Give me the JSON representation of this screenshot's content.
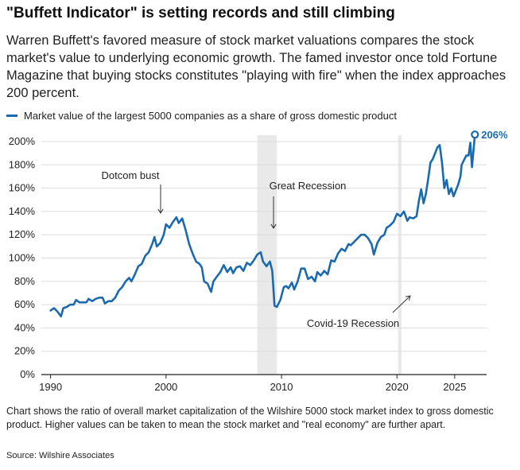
{
  "header": {
    "title": "\"Buffett Indicator\" is setting records and still climbing",
    "subtitle": "Warren Buffett's favored measure of stock market valuations compares the stock market's value to underlying economic growth. The famed investor once told Fortune Magazine that buying stocks constitutes \"playing with fire\" when the index approaches 200 percent."
  },
  "footer": {
    "caption": "Chart shows the ratio of overall market capitalization of the Wilshire 5000 stock market index to gross domestic product. Higher values can be taken to mean the stock market and \"real economy\" are further apart.",
    "source": "Source: Wilshire Associates"
  },
  "colors": {
    "line": "#1a6aad",
    "shade": "#e9e9e9",
    "grid": "#dddddd",
    "axis": "#222222",
    "arrow": "#333333"
  },
  "chart_data": {
    "type": "line",
    "title": "\"Buffett Indicator\" is setting records and still climbing",
    "xlabel": "",
    "ylabel": "",
    "xlim": [
      1989.2,
      2026.8
    ],
    "ylim": [
      0,
      200
    ],
    "grid": true,
    "legend": "top-left",
    "x_ticks": [
      1990,
      2000,
      2010,
      2020,
      2025
    ],
    "x_tick_labels": [
      "1990",
      "2000",
      "2010",
      "2020",
      "2025"
    ],
    "y_ticks": [
      0,
      20,
      40,
      60,
      80,
      100,
      120,
      140,
      160,
      180,
      200
    ],
    "y_tick_labels": [
      "0%",
      "20%",
      "40%",
      "60%",
      "80%",
      "100%",
      "120%",
      "140%",
      "160%",
      "180%",
      "200%"
    ],
    "series": [
      {
        "name": "Market value of the largest 5000 companies as a share of gross domestic product",
        "end_label": "206%",
        "points": [
          [
            1990.0,
            55
          ],
          [
            1990.3,
            57
          ],
          [
            1990.6,
            54
          ],
          [
            1990.9,
            50
          ],
          [
            1991.1,
            57
          ],
          [
            1991.4,
            58
          ],
          [
            1991.7,
            60
          ],
          [
            1992.0,
            60
          ],
          [
            1992.2,
            64
          ],
          [
            1992.5,
            62
          ],
          [
            1992.8,
            62
          ],
          [
            1993.1,
            62
          ],
          [
            1993.3,
            65
          ],
          [
            1993.6,
            63
          ],
          [
            1993.9,
            65
          ],
          [
            1994.2,
            66
          ],
          [
            1994.5,
            66
          ],
          [
            1994.7,
            61
          ],
          [
            1995.0,
            63
          ],
          [
            1995.3,
            63
          ],
          [
            1995.6,
            66
          ],
          [
            1995.9,
            72
          ],
          [
            1996.2,
            75
          ],
          [
            1996.5,
            80
          ],
          [
            1996.8,
            83
          ],
          [
            1997.0,
            80
          ],
          [
            1997.3,
            86
          ],
          [
            1997.6,
            93
          ],
          [
            1997.9,
            95
          ],
          [
            1998.2,
            102
          ],
          [
            1998.5,
            105
          ],
          [
            1998.8,
            112
          ],
          [
            1999.0,
            118
          ],
          [
            1999.2,
            110
          ],
          [
            1999.5,
            113
          ],
          [
            1999.8,
            120
          ],
          [
            2000.0,
            129
          ],
          [
            2000.3,
            126
          ],
          [
            2000.6,
            131
          ],
          [
            2000.9,
            135
          ],
          [
            2001.1,
            130
          ],
          [
            2001.4,
            134
          ],
          [
            2001.7,
            124
          ],
          [
            2002.0,
            112
          ],
          [
            2002.3,
            104
          ],
          [
            2002.6,
            97
          ],
          [
            2002.9,
            95
          ],
          [
            2003.1,
            92
          ],
          [
            2003.3,
            80
          ],
          [
            2003.6,
            78
          ],
          [
            2003.9,
            71
          ],
          [
            2004.1,
            80
          ],
          [
            2004.4,
            84
          ],
          [
            2004.7,
            88
          ],
          [
            2005.0,
            94
          ],
          [
            2005.3,
            88
          ],
          [
            2005.6,
            92
          ],
          [
            2005.8,
            87
          ],
          [
            2006.1,
            92
          ],
          [
            2006.4,
            93
          ],
          [
            2006.7,
            89
          ],
          [
            2007.0,
            96
          ],
          [
            2007.3,
            94
          ],
          [
            2007.6,
            98
          ],
          [
            2007.9,
            103
          ],
          [
            2008.2,
            105
          ],
          [
            2008.4,
            97
          ],
          [
            2008.7,
            93
          ],
          [
            2009.0,
            97
          ],
          [
            2009.2,
            89
          ],
          [
            2009.4,
            59
          ],
          [
            2009.6,
            58
          ],
          [
            2009.9,
            64
          ],
          [
            2010.2,
            75
          ],
          [
            2010.4,
            76
          ],
          [
            2010.6,
            74
          ],
          [
            2010.9,
            79
          ],
          [
            2011.1,
            73
          ],
          [
            2011.4,
            80
          ],
          [
            2011.7,
            91
          ],
          [
            2012.0,
            91
          ],
          [
            2012.3,
            82
          ],
          [
            2012.6,
            84
          ],
          [
            2012.9,
            80
          ],
          [
            2013.1,
            88
          ],
          [
            2013.4,
            85
          ],
          [
            2013.7,
            89
          ],
          [
            2014.0,
            86
          ],
          [
            2014.3,
            98
          ],
          [
            2014.6,
            97
          ],
          [
            2014.9,
            104
          ],
          [
            2015.2,
            108
          ],
          [
            2015.5,
            106
          ],
          [
            2015.8,
            112
          ],
          [
            2016.0,
            111
          ],
          [
            2016.3,
            114
          ],
          [
            2016.6,
            117
          ],
          [
            2016.9,
            120
          ],
          [
            2017.2,
            120
          ],
          [
            2017.5,
            117
          ],
          [
            2017.8,
            112
          ],
          [
            2018.0,
            103
          ],
          [
            2018.3,
            113
          ],
          [
            2018.6,
            118
          ],
          [
            2018.9,
            120
          ],
          [
            2019.1,
            126
          ],
          [
            2019.4,
            128
          ],
          [
            2019.7,
            131
          ],
          [
            2020.0,
            138
          ],
          [
            2020.3,
            136
          ],
          [
            2020.6,
            140
          ],
          [
            2020.9,
            132
          ],
          [
            2021.1,
            135
          ],
          [
            2021.4,
            134
          ],
          [
            2021.7,
            136
          ],
          [
            2021.9,
            149
          ],
          [
            2022.1,
            159
          ],
          [
            2022.3,
            147
          ],
          [
            2022.5,
            155
          ],
          [
            2022.7,
            168
          ],
          [
            2022.9,
            182
          ],
          [
            2023.1,
            185
          ],
          [
            2023.3,
            190
          ],
          [
            2023.5,
            195
          ],
          [
            2023.7,
            197
          ],
          [
            2023.9,
            182
          ],
          [
            2024.1,
            160
          ],
          [
            2024.3,
            167
          ],
          [
            2024.5,
            155
          ],
          [
            2024.7,
            160
          ],
          [
            2024.9,
            153
          ],
          [
            2025.1,
            158
          ],
          [
            2025.3,
            163
          ],
          [
            2025.5,
            170
          ],
          [
            2025.6,
            180
          ],
          [
            2025.8,
            184
          ],
          [
            2026.0,
            188
          ],
          [
            2026.2,
            188
          ],
          [
            2026.35,
            199
          ],
          [
            2026.5,
            178
          ],
          [
            2026.75,
            206
          ]
        ]
      }
    ],
    "shaded_periods": [
      {
        "name": "great-recession",
        "start": 2007.9,
        "end": 2009.6
      },
      {
        "name": "covid",
        "start": 2020.1,
        "end": 2020.4
      }
    ],
    "annotations": [
      {
        "name": "dotcom-bust",
        "text": "Dotcom bust"
      },
      {
        "name": "great-recession",
        "text": "Great Recession"
      },
      {
        "name": "covid-19-recession",
        "text": "Covid-19 Recession"
      }
    ]
  }
}
